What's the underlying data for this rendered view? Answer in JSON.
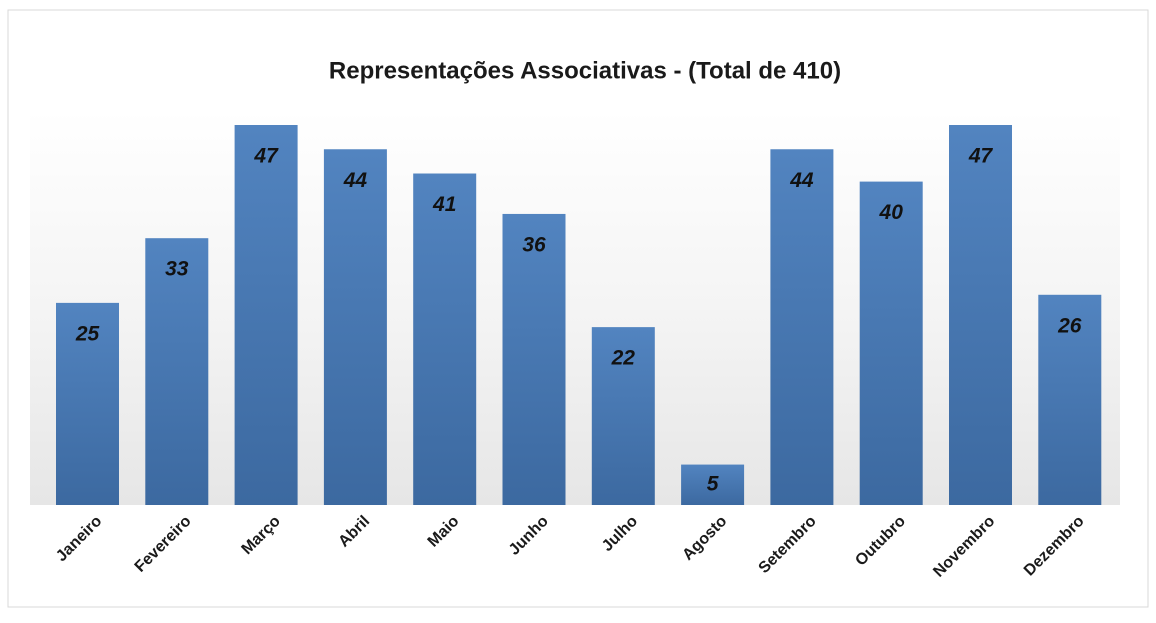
{
  "chart_data": {
    "type": "bar",
    "title": "Representações Associativas - (Total de 410)",
    "categories": [
      "Janeiro",
      "Fevereiro",
      "Março",
      "Abril",
      "Maio",
      "Junho",
      "Julho",
      "Agosto",
      "Setembro",
      "Outubro",
      "Novembro",
      "Dezembro"
    ],
    "values": [
      25,
      33,
      47,
      44,
      41,
      36,
      22,
      5,
      44,
      40,
      47,
      26
    ],
    "color": "#4f81bd"
  }
}
